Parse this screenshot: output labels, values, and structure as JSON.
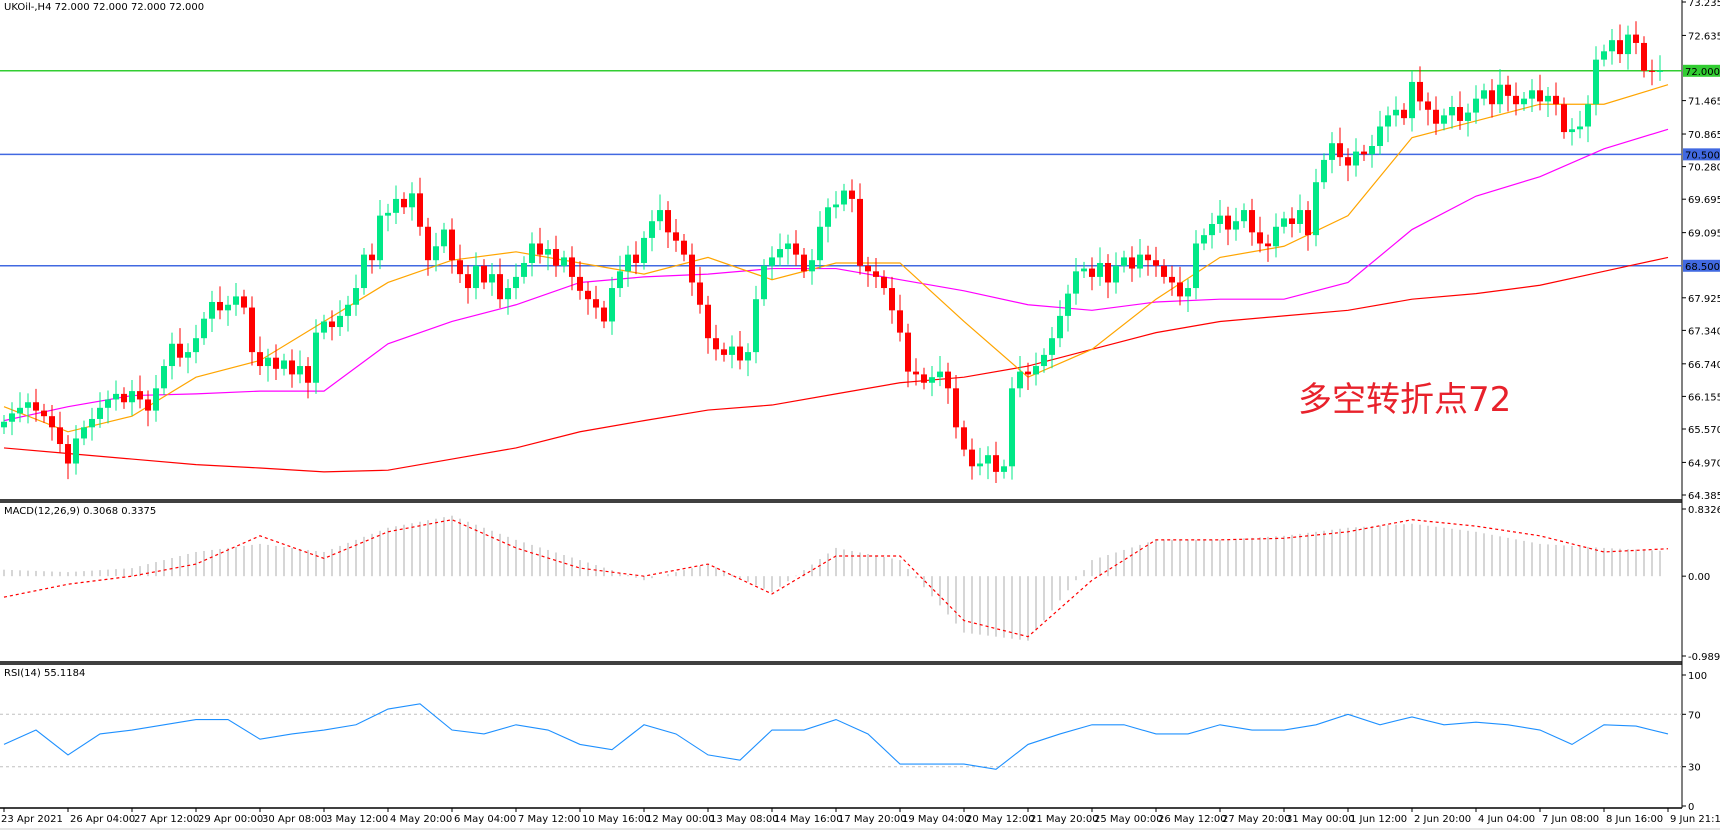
{
  "header": {
    "title": "UKOil-,H4  72.000 72.000 72.000 72.000"
  },
  "annotation": "多空转折点72",
  "colors": {
    "up": "#00e887",
    "down": "#ff0000",
    "ma_fast": "#ffa500",
    "ma_mid": "#ff00ff",
    "ma_slow": "#ff0000",
    "level_green": "#32cd32",
    "level_blue": "#4169e1",
    "macd_hist": "#c0c0c0",
    "macd_signal": "#ff0000",
    "rsi": "#1e90ff"
  },
  "chart_data": [
    {
      "type": "candlestick",
      "title": "UKOil-,H4",
      "ylim": [
        64.385,
        73.235
      ],
      "y_ticks": [
        "73.235",
        "72.635",
        "71.465",
        "70.865",
        "70.280",
        "69.695",
        "69.095",
        "67.925",
        "67.340",
        "66.740",
        "66.155",
        "65.570",
        "64.970",
        "64.385"
      ],
      "x_ticks": [
        "23 Apr 2021",
        "26 Apr 04:00",
        "27 Apr 12:00",
        "29 Apr 00:00",
        "30 Apr 08:00",
        "3 May 12:00",
        "4 May 20:00",
        "6 May 04:00",
        "7 May 12:00",
        "10 May 16:00",
        "12 May 00:00",
        "13 May 08:00",
        "14 May 16:00",
        "17 May 20:00",
        "19 May 04:00",
        "20 May 12:00",
        "21 May 20:00",
        "25 May 00:00",
        "26 May 12:00",
        "27 May 20:00",
        "31 May 00:00",
        "1 Jun 12:00",
        "2 Jun 20:00",
        "4 Jun 04:00",
        "7 Jun 08:00",
        "8 Jun 16:00",
        "9 Jun 21:15"
      ],
      "closes": [
        65.7,
        65.85,
        65.95,
        66.05,
        65.9,
        65.8,
        65.6,
        65.3,
        64.95,
        65.4,
        65.6,
        65.75,
        65.95,
        66.1,
        66.2,
        66.05,
        66.25,
        66.1,
        65.9,
        66.3,
        66.7,
        67.1,
        66.85,
        66.95,
        67.2,
        67.55,
        67.85,
        67.7,
        67.8,
        67.95,
        67.75,
        66.95,
        66.7,
        66.85,
        66.65,
        66.8,
        66.55,
        66.7,
        66.4,
        67.3,
        67.5,
        67.4,
        67.6,
        67.8,
        68.1,
        68.7,
        68.6,
        69.4,
        69.45,
        69.7,
        69.55,
        69.8,
        69.2,
        68.6,
        68.85,
        69.15,
        68.6,
        68.35,
        68.1,
        68.5,
        68.2,
        68.35,
        67.9,
        68.1,
        68.3,
        68.55,
        68.9,
        68.7,
        68.8,
        68.5,
        68.65,
        68.3,
        68.05,
        67.9,
        67.75,
        67.5,
        68.1,
        68.4,
        68.7,
        68.55,
        69.0,
        69.3,
        69.5,
        69.1,
        68.95,
        68.7,
        68.2,
        67.8,
        67.2,
        67.0,
        66.9,
        67.05,
        66.8,
        66.95,
        67.9,
        68.5,
        68.65,
        68.8,
        68.9,
        68.7,
        68.4,
        68.6,
        69.2,
        69.55,
        69.6,
        69.85,
        69.7,
        68.5,
        68.4,
        68.3,
        68.1,
        67.7,
        67.3,
        66.6,
        66.55,
        66.4,
        66.5,
        66.6,
        66.3,
        65.6,
        65.2,
        64.9,
        64.95,
        65.1,
        64.8,
        64.9,
        66.3,
        66.6,
        66.55,
        66.7,
        66.9,
        67.2,
        67.6,
        68.0,
        68.4,
        68.45,
        68.3,
        68.55,
        68.2,
        68.5,
        68.65,
        68.45,
        68.7,
        68.6,
        68.5,
        68.3,
        68.2,
        67.95,
        68.1,
        68.9,
        69.05,
        69.25,
        69.4,
        69.15,
        69.3,
        69.5,
        69.1,
        68.9,
        68.85,
        69.2,
        69.35,
        69.25,
        69.5,
        69.05,
        70.0,
        70.4,
        70.7,
        70.45,
        70.3,
        70.55,
        70.5,
        70.65,
        71.0,
        71.2,
        71.3,
        71.15,
        71.8,
        71.45,
        71.3,
        71.05,
        71.2,
        71.35,
        71.1,
        71.25,
        71.5,
        71.65,
        71.4,
        71.75,
        71.55,
        71.4,
        71.5,
        71.65,
        71.45,
        71.55,
        71.4,
        70.9,
        70.95,
        71.0,
        71.4,
        72.2,
        72.35,
        72.55,
        72.3,
        72.65,
        72.5,
        72.0,
        71.98,
        72.0
      ],
      "moving_averages_every_8_bars": {
        "fast": [
          65.97,
          65.52,
          65.8,
          66.5,
          66.8,
          67.5,
          68.2,
          68.6,
          68.75,
          68.55,
          68.35,
          68.65,
          68.25,
          68.55,
          68.55,
          67.5,
          66.5,
          67.0,
          67.9,
          68.65,
          68.85,
          69.4,
          70.8,
          71.1,
          71.4,
          71.4,
          71.75
        ],
        "mid": [
          65.72,
          65.97,
          66.17,
          66.2,
          66.25,
          66.25,
          67.1,
          67.5,
          67.8,
          68.2,
          68.3,
          68.35,
          68.45,
          68.45,
          68.25,
          68.05,
          67.8,
          67.7,
          67.85,
          67.9,
          67.9,
          68.2,
          69.15,
          69.75,
          70.1,
          70.6,
          70.95
        ],
        "slow": [
          65.23,
          65.13,
          65.03,
          64.93,
          64.87,
          64.8,
          64.83,
          65.03,
          65.23,
          65.52,
          65.72,
          65.91,
          66.0,
          66.2,
          66.4,
          66.5,
          66.7,
          67.0,
          67.3,
          67.5,
          67.6,
          67.7,
          67.9,
          68.0,
          68.15,
          68.4,
          68.65
        ]
      },
      "levels": [
        {
          "value": 72.0,
          "label": "72.000",
          "color": "green"
        },
        {
          "value": 70.5,
          "label": "70.500",
          "color": "blue"
        },
        {
          "value": 68.5,
          "label": "68.500",
          "color": "blue"
        }
      ]
    },
    {
      "type": "bar",
      "title": "MACD(12,26,9) 0.3068 0.3375",
      "ylim": [
        -0.9897,
        0.8326
      ],
      "y_ticks": [
        "0.8326",
        "0.00",
        "-0.9897"
      ],
      "histogram_every_8_bars": [
        0.08,
        0.05,
        0.1,
        0.3,
        0.4,
        0.3,
        0.6,
        0.75,
        0.45,
        0.2,
        -0.05,
        0.15,
        -0.2,
        0.35,
        0.2,
        -0.7,
        -0.8,
        0.2,
        0.45,
        0.45,
        0.5,
        0.6,
        0.65,
        0.55,
        0.4,
        0.35,
        0.31
      ],
      "signal_every_8_bars": [
        -0.26,
        -0.1,
        0.0,
        0.15,
        0.5,
        0.22,
        0.55,
        0.7,
        0.35,
        0.1,
        0.0,
        0.15,
        -0.22,
        0.25,
        0.25,
        -0.55,
        -0.75,
        -0.05,
        0.45,
        0.45,
        0.47,
        0.55,
        0.7,
        0.62,
        0.5,
        0.3,
        0.34
      ]
    },
    {
      "type": "line",
      "title": "RSI(14) 55.1184",
      "ylim": [
        0,
        100
      ],
      "y_ticks": [
        "100",
        "70",
        "30",
        "0"
      ],
      "levels": [
        70,
        30
      ],
      "values_every_4_bars": [
        47,
        58,
        39,
        55,
        58,
        62,
        66,
        66,
        51,
        55,
        58,
        62,
        74,
        78,
        58,
        55,
        62,
        58,
        47,
        43,
        62,
        55,
        39,
        35,
        58,
        58,
        66,
        55,
        32,
        32,
        32,
        28,
        47,
        55,
        62,
        62,
        55,
        55,
        62,
        58,
        58,
        62,
        70,
        62,
        68,
        62,
        64,
        62,
        58,
        47,
        62,
        61,
        55
      ]
    }
  ]
}
